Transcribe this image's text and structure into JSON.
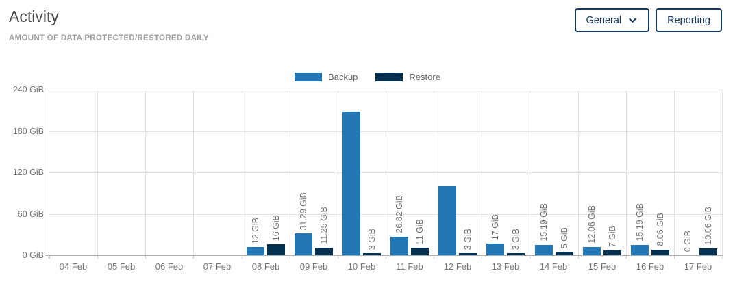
{
  "header": {
    "title": "Activity",
    "subtitle": "AMOUNT OF DATA PROTECTED/RESTORED DAILY",
    "buttons": [
      {
        "label": "General",
        "icon": "chevron-down-icon"
      },
      {
        "label": "Reporting"
      }
    ]
  },
  "colors": {
    "backup": "#2277b4",
    "restore": "#053150",
    "button_navy": "#153a63",
    "grid": "#e2e2e2",
    "axis_text": "#757575"
  },
  "chart_data": {
    "type": "bar",
    "title": "Activity",
    "subtitle": "AMOUNT OF DATA PROTECTED/RESTORED DAILY",
    "unit": "GiB",
    "categories": [
      "04 Feb",
      "05 Feb",
      "06 Feb",
      "07 Feb",
      "08 Feb",
      "09 Feb",
      "10 Feb",
      "11 Feb",
      "12 Feb",
      "13 Feb",
      "14 Feb",
      "15 Feb",
      "16 Feb",
      "17 Feb"
    ],
    "series": [
      {
        "name": "Backup",
        "color": "#2277b4",
        "values": [
          0,
          0,
          0,
          0,
          12,
          31.29,
          208,
          26.82,
          100,
          17,
          15.19,
          12.06,
          15.19,
          0
        ],
        "labels": [
          "",
          "",
          "",
          "",
          "12 GiB",
          "31.29 GiB",
          "",
          "26.82 GiB",
          "",
          "17 GiB",
          "15.19 GiB",
          "12.06 GiB",
          "15.19 GiB",
          "0 GiB"
        ]
      },
      {
        "name": "Restore",
        "color": "#053150",
        "values": [
          0,
          0,
          0,
          0,
          16,
          11.25,
          3,
          11,
          3,
          3,
          5,
          7,
          8.06,
          10.06
        ],
        "labels": [
          "",
          "",
          "",
          "",
          "16 GiB",
          "11.25 GiB",
          "3 GiB",
          "11 GiB",
          "3 GiB",
          "3 GiB",
          "5 GiB",
          "7 GiB",
          "8.06 GiB",
          "10.06 GiB"
        ]
      }
    ],
    "ylim": [
      0,
      240
    ],
    "yticks": [
      0,
      60,
      120,
      180,
      240
    ],
    "ytick_labels": [
      "0 GiB",
      "60 GiB",
      "120 GiB",
      "180 GiB",
      "240 GiB"
    ],
    "legend": [
      "Backup",
      "Restore"
    ],
    "legend_position": "top-center",
    "grid": true
  }
}
